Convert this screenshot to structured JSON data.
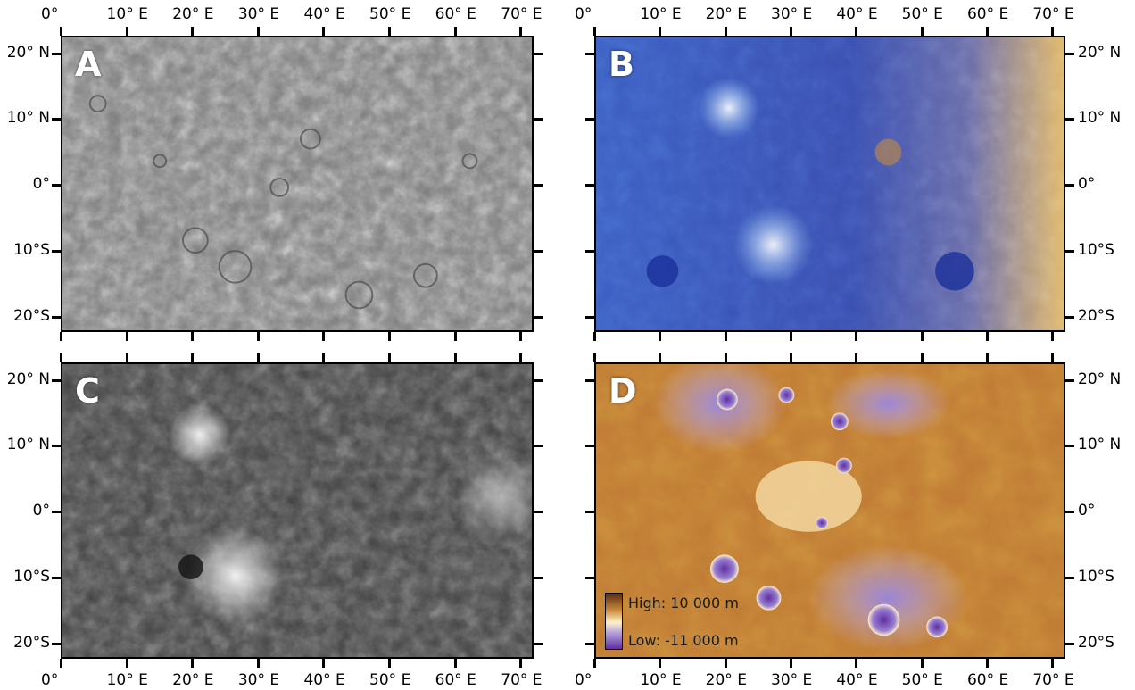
{
  "figure": {
    "panels": [
      {
        "id": "A",
        "label": "A",
        "description": "grayscale image mosaic",
        "palette": "gray"
      },
      {
        "id": "B",
        "label": "B",
        "description": "enhanced color mosaic",
        "palette": "color"
      },
      {
        "id": "C",
        "label": "C",
        "description": "albedo mosaic",
        "palette": "dark"
      },
      {
        "id": "D",
        "label": "D",
        "description": "topography",
        "palette": "topo"
      }
    ],
    "x_ticks": [
      "0°",
      "10° E",
      "20° E",
      "30° E",
      "40° E",
      "50° E",
      "60° E",
      "70° E"
    ],
    "y_ticks": [
      "20° N",
      "10° N",
      "0°",
      "10°S",
      "20°S"
    ],
    "legend": {
      "high": "High: 10 000 m",
      "low": "Low: -11 000 m",
      "colors": [
        "#5a2a14",
        "#c98a3c",
        "#fff1c8",
        "#b9a4dd",
        "#5e2fa0"
      ]
    }
  }
}
